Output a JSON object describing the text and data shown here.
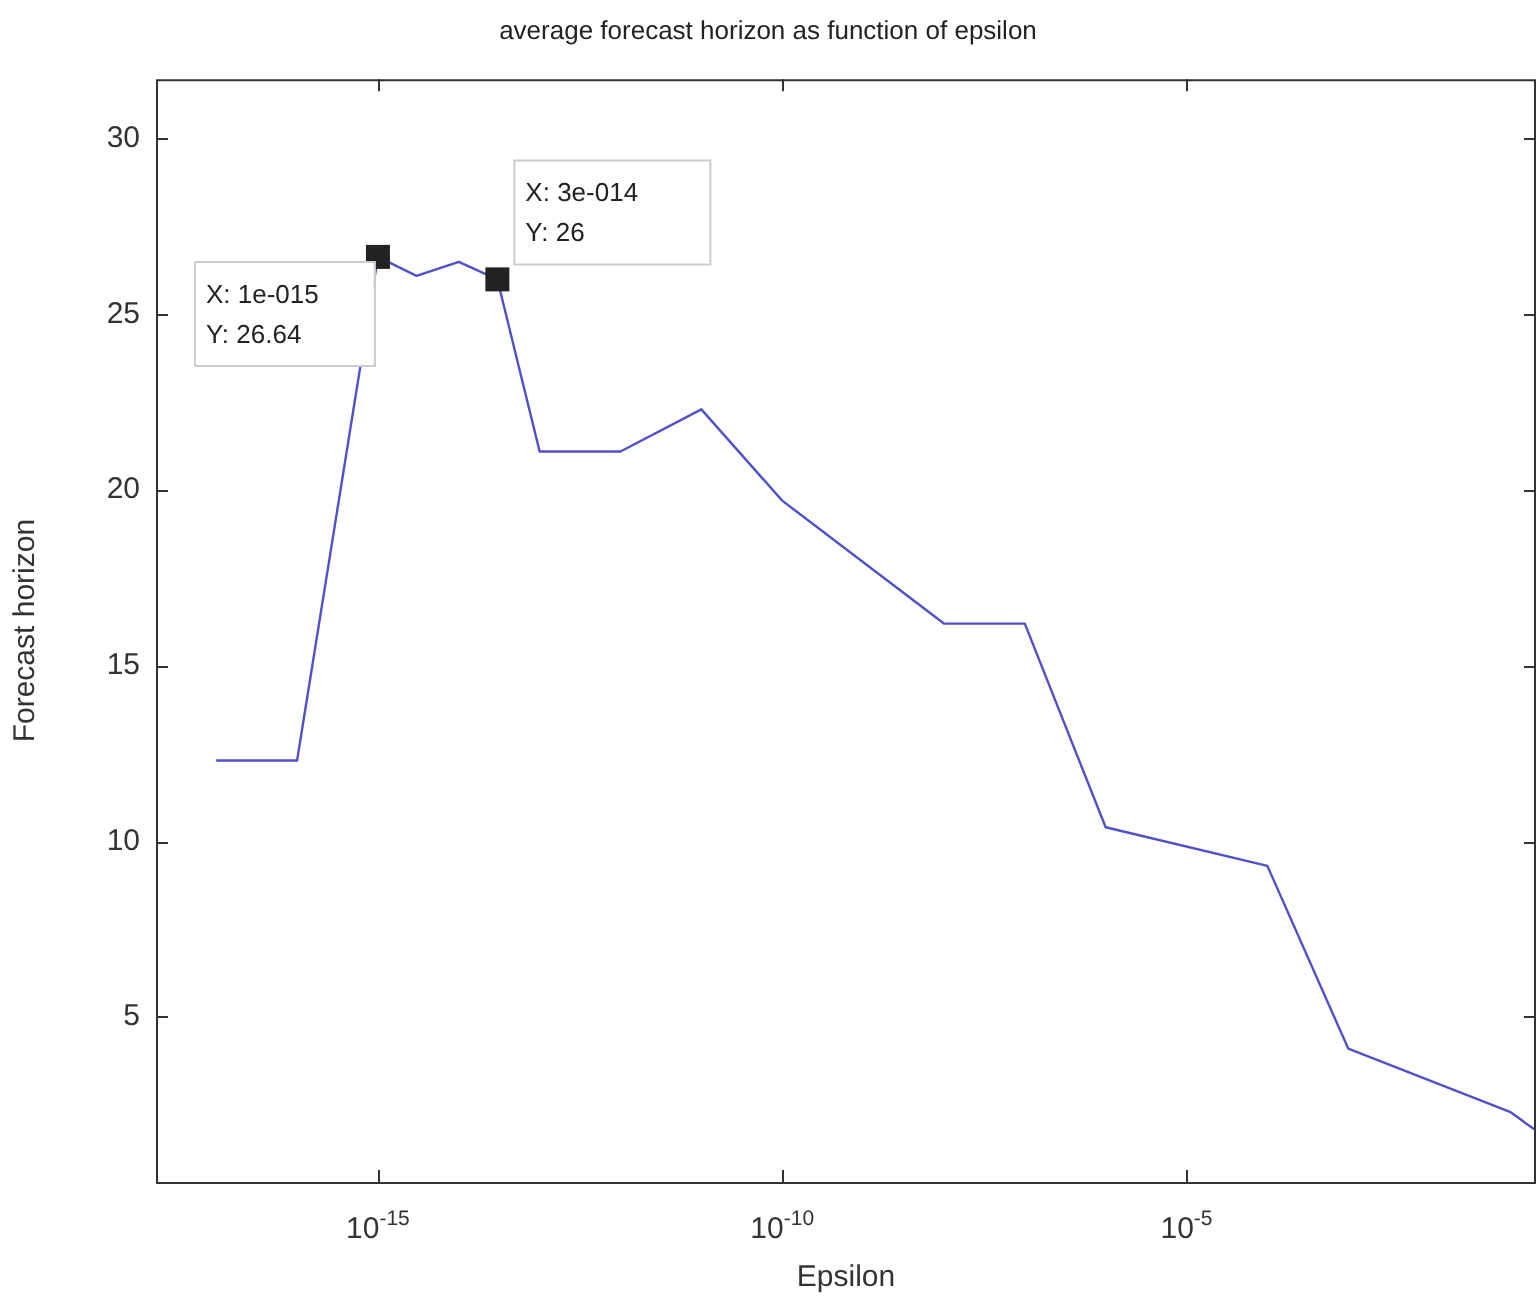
{
  "chart_data": {
    "type": "line",
    "title": "average forecast horizon as function of epsilon",
    "xlabel": "Epsilon",
    "ylabel": "Forecast horizon",
    "log": "x",
    "grid": false,
    "legend": false,
    "marker": "none",
    "line_style": "solid",
    "x": [
      1e-17,
      1e-16,
      1e-15,
      3e-15,
      1e-14,
      3e-14,
      1e-13,
      1e-12,
      1e-11,
      1e-10,
      1e-08,
      1e-07,
      1e-06,
      0.0001,
      0.001,
      0.1,
      0.2
    ],
    "series": [
      {
        "color": "#5050c8",
        "values": [
          12.3,
          12.3,
          26.64,
          26.1,
          26.5,
          26,
          21.1,
          21.1,
          22.3,
          19.7,
          16.2,
          16.2,
          10.4,
          9.3,
          4.1,
          2.3,
          1.8
        ]
      }
    ],
    "xlim": [
      1.8e-18,
      0.21
    ],
    "ylim": [
      0.3,
      31.7
    ],
    "xticks": [
      {
        "value": 1e-15,
        "label": "10$^{-15}$"
      },
      {
        "value": 1e-10,
        "label": "10$^{-10}$"
      },
      {
        "value": 1e-05,
        "label": "10$^{-5}$"
      }
    ],
    "yticks": [
      5,
      10,
      15,
      20,
      25,
      30
    ],
    "annotations": [
      {
        "text": "X: 1e-015\nY: 26.64",
        "x": 1e-15,
        "y": 26.64
      },
      {
        "text": "X: 3e-014\nY: 26",
        "x": 3e-14,
        "y": 26
      }
    ]
  }
}
